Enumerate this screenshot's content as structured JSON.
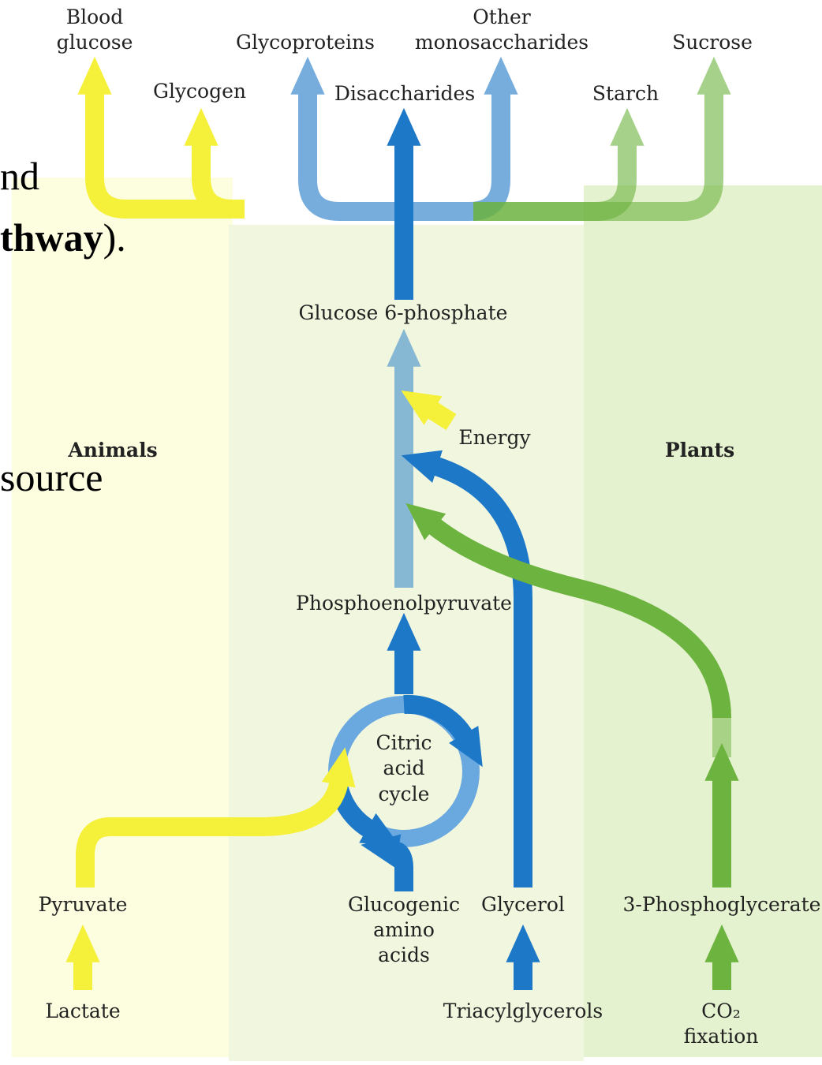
{
  "background_text": [
    [
      "nd"
    ],
    [
      "thway",
      ")."
    ],
    [
      "source"
    ]
  ],
  "regions": {
    "animals": "Animals",
    "plants": "Plants"
  },
  "nodes": {
    "blood_glucose": [
      "Blood",
      "glucose"
    ],
    "glycogen": [
      "Glycogen"
    ],
    "glycoproteins": [
      "Glycoproteins"
    ],
    "other_monosaccharides": [
      "Other",
      "monosaccharides"
    ],
    "disaccharides": [
      "Disaccharides"
    ],
    "starch": [
      "Starch"
    ],
    "sucrose": [
      "Sucrose"
    ],
    "glucose_6_phosphate": [
      "Glucose 6-phosphate"
    ],
    "energy": [
      "Energy"
    ],
    "phosphoenolpyruvate": [
      "Phosphoenolpyruvate"
    ],
    "citric_acid_cycle": [
      "Citric",
      "acid",
      "cycle"
    ],
    "pyruvate": [
      "Pyruvate"
    ],
    "glucogenic_amino_acids": [
      "Glucogenic",
      "amino",
      "acids"
    ],
    "glycerol": [
      "Glycerol"
    ],
    "phosphoglycerate": [
      "3-Phosphoglycerate"
    ],
    "lactate": [
      "Lactate"
    ],
    "triacylglycerols": [
      "Triacylglycerols"
    ],
    "co2_fixation": [
      "CO₂",
      "fixation"
    ]
  }
}
